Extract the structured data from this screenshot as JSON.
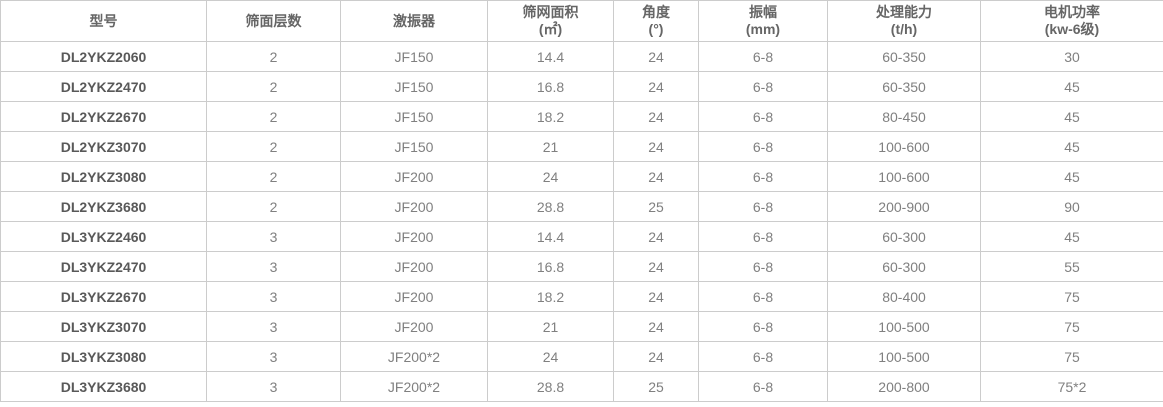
{
  "table": {
    "name": "vibrating-screen-specs",
    "columns": [
      {
        "key": "model",
        "label": "型号",
        "sub": ""
      },
      {
        "key": "layers",
        "label": "筛面层数",
        "sub": ""
      },
      {
        "key": "exciter",
        "label": "激振器",
        "sub": ""
      },
      {
        "key": "area",
        "label": "筛网面积",
        "sub": "(㎡)"
      },
      {
        "key": "angle",
        "label": "角度",
        "sub": "(°)"
      },
      {
        "key": "amplitude",
        "label": "振幅",
        "sub": "(mm)"
      },
      {
        "key": "capacity",
        "label": "处理能力",
        "sub": "(t/h)"
      },
      {
        "key": "power",
        "label": "电机功率",
        "sub": "(kw-6级)"
      }
    ],
    "rows": [
      [
        "DL2YKZ2060",
        "2",
        "JF150",
        "14.4",
        "24",
        "6-8",
        "60-350",
        "30"
      ],
      [
        "DL2YKZ2470",
        "2",
        "JF150",
        "16.8",
        "24",
        "6-8",
        "60-350",
        "45"
      ],
      [
        "DL2YKZ2670",
        "2",
        "JF150",
        "18.2",
        "24",
        "6-8",
        "80-450",
        "45"
      ],
      [
        "DL2YKZ3070",
        "2",
        "JF150",
        "21",
        "24",
        "6-8",
        "100-600",
        "45"
      ],
      [
        "DL2YKZ3080",
        "2",
        "JF200",
        "24",
        "24",
        "6-8",
        "100-600",
        "45"
      ],
      [
        "DL2YKZ3680",
        "2",
        "JF200",
        "28.8",
        "25",
        "6-8",
        "200-900",
        "90"
      ],
      [
        "DL3YKZ2460",
        "3",
        "JF200",
        "14.4",
        "24",
        "6-8",
        "60-300",
        "45"
      ],
      [
        "DL3YKZ2470",
        "3",
        "JF200",
        "16.8",
        "24",
        "6-8",
        "60-300",
        "55"
      ],
      [
        "DL3YKZ2670",
        "3",
        "JF200",
        "18.2",
        "24",
        "6-8",
        "80-400",
        "75"
      ],
      [
        "DL3YKZ3070",
        "3",
        "JF200",
        "21",
        "24",
        "6-8",
        "100-500",
        "75"
      ],
      [
        "DL3YKZ3080",
        "3",
        "JF200*2",
        "24",
        "24",
        "6-8",
        "100-500",
        "75"
      ],
      [
        "DL3YKZ3680",
        "3",
        "JF200*2",
        "28.8",
        "25",
        "6-8",
        "200-800",
        "75*2"
      ]
    ],
    "colors": {
      "border": "#cccccc",
      "header_text": "#666666",
      "model_text": "#595959",
      "body_text": "#808080",
      "row_background": "#ffffff"
    }
  }
}
